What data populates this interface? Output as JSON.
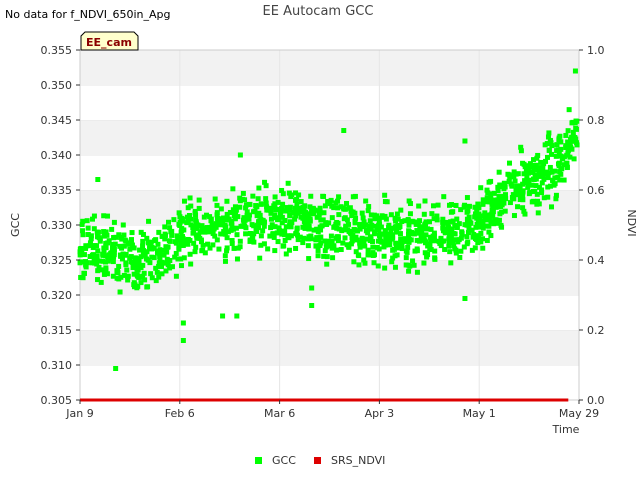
{
  "chart_data": {
    "type": "scatter",
    "title": "EE Autocam GCC",
    "note": "No data for f_NDVI_650in_Apg",
    "site_tag": "EE_cam",
    "xlabel": "Time",
    "ylabel": "GCC",
    "y2label": "NDVI",
    "x_domain_days": [
      0,
      140
    ],
    "x_ticks": [
      {
        "label": "Jan 9",
        "day": 0
      },
      {
        "label": "Feb 6",
        "day": 28
      },
      {
        "label": "Mar 6",
        "day": 56
      },
      {
        "label": "Apr 3",
        "day": 84
      },
      {
        "label": "May 1",
        "day": 112
      },
      {
        "label": "May 29",
        "day": 140
      }
    ],
    "ylim": [
      0.305,
      0.355
    ],
    "y_ticks": [
      "0.305",
      "0.310",
      "0.315",
      "0.320",
      "0.325",
      "0.330",
      "0.335",
      "0.340",
      "0.345",
      "0.350",
      "0.355"
    ],
    "y2lim": [
      0.0,
      1.0
    ],
    "y2_ticks": [
      "0.0",
      "0.2",
      "0.4",
      "0.6",
      "0.8",
      "1.0"
    ],
    "series": [
      {
        "name": "GCC",
        "color": "#00ff00",
        "marker": "square",
        "axis": "left",
        "trend_days": [
          0,
          10,
          20,
          28,
          40,
          56,
          70,
          84,
          98,
          112,
          120,
          126,
          134,
          140
        ],
        "trend_gcc": [
          0.3265,
          0.326,
          0.325,
          0.3285,
          0.3295,
          0.331,
          0.3295,
          0.3285,
          0.3285,
          0.33,
          0.335,
          0.336,
          0.339,
          0.344
        ],
        "spread": 0.0045,
        "points_per_day": 10,
        "outliers": [
          {
            "day": 5,
            "gcc": 0.3365
          },
          {
            "day": 10,
            "gcc": 0.3095
          },
          {
            "day": 29,
            "gcc": 0.3135
          },
          {
            "day": 29,
            "gcc": 0.316
          },
          {
            "day": 40,
            "gcc": 0.317
          },
          {
            "day": 44,
            "gcc": 0.317
          },
          {
            "day": 45,
            "gcc": 0.34
          },
          {
            "day": 65,
            "gcc": 0.3185
          },
          {
            "day": 65,
            "gcc": 0.321
          },
          {
            "day": 74,
            "gcc": 0.3435
          },
          {
            "day": 108,
            "gcc": 0.342
          },
          {
            "day": 108,
            "gcc": 0.3195
          },
          {
            "day": 139,
            "gcc": 0.352
          }
        ]
      },
      {
        "name": "SRS_NDVI",
        "color": "#dd0000",
        "marker": "square",
        "axis": "right",
        "x_days": [
          0,
          137
        ],
        "ndvi": [
          0.0,
          0.0
        ]
      }
    ],
    "legend": {
      "position": "bottom-center",
      "entries": [
        "GCC",
        "SRS_NDVI"
      ]
    },
    "background_bands": true
  }
}
